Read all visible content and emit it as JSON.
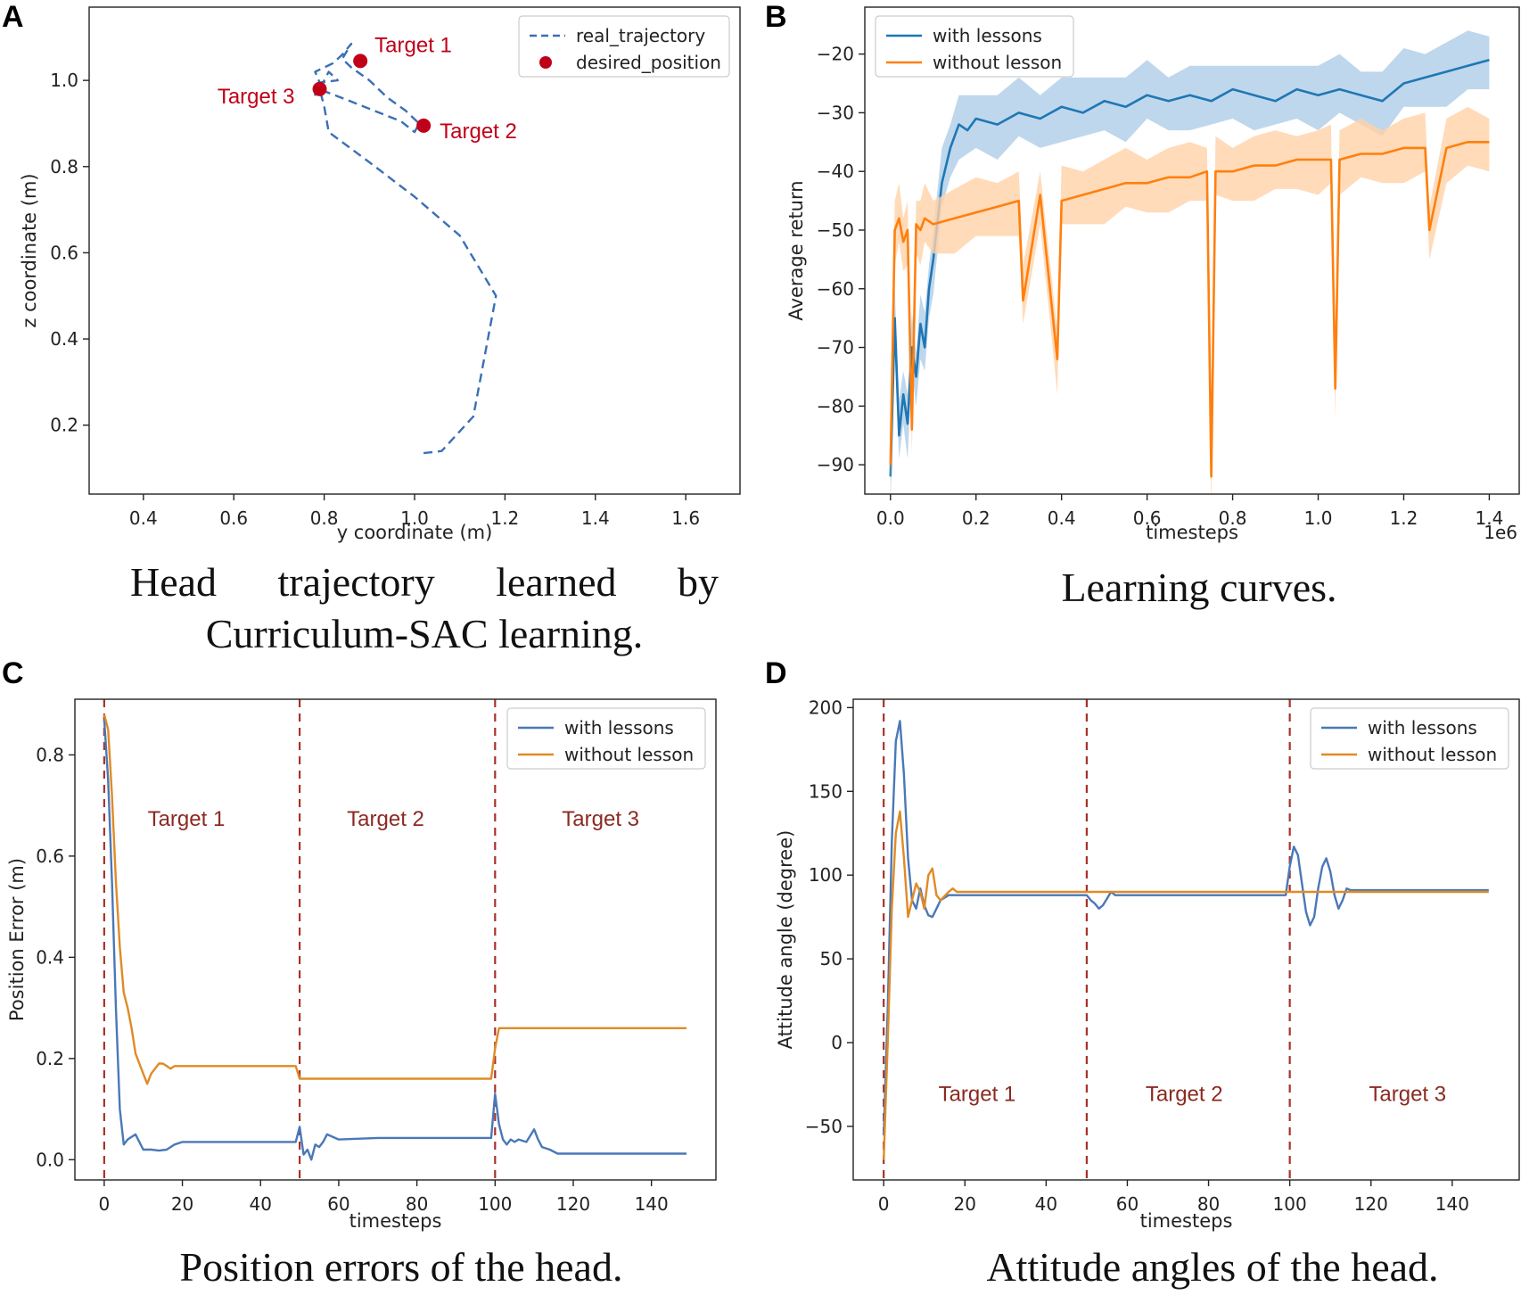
{
  "figure": {
    "captions": {
      "A": "Head trajectory learned by Curriculum-SAC learning.",
      "B": "Learning curves.",
      "C": "Position errors of the head.",
      "D": "Attitude angles of the head."
    }
  },
  "chart_data": [
    {
      "id": "A",
      "panel_label": "A",
      "type": "line",
      "xlabel": "y coordinate (m)",
      "ylabel": "z coordinate (m)",
      "xlim": [
        0.28,
        1.72
      ],
      "ylim": [
        0.04,
        1.17
      ],
      "xticks": [
        "0.4",
        "0.6",
        "0.8",
        "1.0",
        "1.2",
        "1.4",
        "1.6"
      ],
      "yticks": [
        "0.2",
        "0.4",
        "0.6",
        "0.8",
        "1.0"
      ],
      "legend": [
        "real_trajectory",
        "desired_position"
      ],
      "legend_position": "top-right",
      "series": [
        {
          "name": "real_trajectory",
          "color": "#3a6fb5",
          "style": "dashed",
          "x": [
            1.02,
            1.06,
            1.13,
            1.18,
            1.1,
            1.0,
            0.9,
            0.81,
            0.8,
            0.79,
            0.81,
            0.83,
            0.79,
            0.78,
            0.82,
            0.84,
            0.86,
            0.84,
            0.86,
            0.9,
            0.94,
            0.98,
            1.01,
            1.0,
            0.97,
            0.91,
            0.85,
            0.8,
            0.78,
            0.8,
            0.77
          ],
          "y": [
            0.135,
            0.14,
            0.22,
            0.5,
            0.64,
            0.73,
            0.81,
            0.88,
            0.94,
            0.98,
            1.02,
            1.0,
            0.995,
            1.02,
            1.04,
            1.06,
            1.085,
            1.05,
            1.03,
            1.0,
            0.96,
            0.93,
            0.9,
            0.88,
            0.905,
            0.93,
            0.955,
            0.975,
            0.97,
            0.98,
            0.96
          ]
        }
      ],
      "points": {
        "name": "desired_position",
        "color": "#c00018",
        "x": [
          0.88,
          1.02,
          0.79
        ],
        "y": [
          1.045,
          0.895,
          0.98
        ],
        "labels": [
          "Target 1",
          "Target 2",
          "Target 3"
        ]
      }
    },
    {
      "id": "B",
      "panel_label": "B",
      "type": "line",
      "xlabel": "timesteps",
      "ylabel": "Average return",
      "x_offset_label": "1e6",
      "xlim": [
        -0.06,
        1.47
      ],
      "ylim": [
        -95,
        -12
      ],
      "xticks": [
        "0.0",
        "0.2",
        "0.4",
        "0.6",
        "0.8",
        "1.0",
        "1.2",
        "1.4"
      ],
      "yticks": [
        "−20",
        "−30",
        "−40",
        "−50",
        "−60",
        "−70",
        "−80",
        "−90"
      ],
      "legend": [
        "with lessons",
        "without lesson"
      ],
      "legend_position": "top-left",
      "series": [
        {
          "name": "with lessons",
          "color": "#1f77b4",
          "band": "#aecde8",
          "x": [
            0.0,
            0.01,
            0.02,
            0.03,
            0.04,
            0.05,
            0.06,
            0.07,
            0.08,
            0.09,
            0.1,
            0.12,
            0.14,
            0.16,
            0.18,
            0.2,
            0.25,
            0.3,
            0.35,
            0.4,
            0.45,
            0.5,
            0.55,
            0.6,
            0.65,
            0.7,
            0.75,
            0.8,
            0.85,
            0.9,
            0.95,
            1.0,
            1.05,
            1.1,
            1.15,
            1.2,
            1.25,
            1.3,
            1.35,
            1.4
          ],
          "y": [
            -92,
            -65,
            -85,
            -78,
            -83,
            -70,
            -75,
            -66,
            -70,
            -60,
            -55,
            -42,
            -36,
            -32,
            -33,
            -31,
            -32,
            -30,
            -31,
            -29,
            -30,
            -28,
            -29,
            -27,
            -28,
            -27,
            -28,
            -26,
            -27,
            -28,
            -26,
            -27,
            -26,
            -27,
            -28,
            -25,
            -24,
            -23,
            -22,
            -21
          ]
        },
        {
          "name": "without lesson",
          "color": "#ff7f0e",
          "band": "#ffd2a8",
          "x": [
            0.0,
            0.01,
            0.02,
            0.03,
            0.04,
            0.05,
            0.06,
            0.07,
            0.08,
            0.1,
            0.15,
            0.2,
            0.25,
            0.3,
            0.31,
            0.35,
            0.39,
            0.4,
            0.45,
            0.5,
            0.55,
            0.6,
            0.65,
            0.7,
            0.74,
            0.75,
            0.76,
            0.8,
            0.85,
            0.9,
            0.95,
            1.0,
            1.03,
            1.04,
            1.05,
            1.1,
            1.15,
            1.2,
            1.25,
            1.26,
            1.3,
            1.35,
            1.4
          ],
          "y": [
            -90,
            -50,
            -48,
            -52,
            -50,
            -84,
            -49,
            -50,
            -48,
            -49,
            -48,
            -47,
            -46,
            -45,
            -62,
            -44,
            -72,
            -45,
            -44,
            -43,
            -42,
            -42,
            -41,
            -41,
            -40,
            -92,
            -40,
            -40,
            -39,
            -39,
            -38,
            -38,
            -38,
            -77,
            -38,
            -37,
            -37,
            -36,
            -36,
            -50,
            -36,
            -35,
            -35
          ]
        }
      ]
    },
    {
      "id": "C",
      "panel_label": "C",
      "type": "line",
      "xlabel": "timesteps",
      "ylabel": "Position Error (m)",
      "xlim": [
        -7.5,
        156.5
      ],
      "ylim": [
        -0.04,
        0.91
      ],
      "xticks": [
        "0",
        "20",
        "40",
        "60",
        "80",
        "100",
        "120",
        "140"
      ],
      "yticks": [
        "0.0",
        "0.2",
        "0.4",
        "0.6",
        "0.8"
      ],
      "legend": [
        "with lessons",
        "without lesson"
      ],
      "legend_position": "top-right",
      "vlines": [
        0,
        50,
        100
      ],
      "region_labels": [
        "Target 1",
        "Target 2",
        "Target 3"
      ],
      "region_label_x": [
        21,
        72,
        127
      ],
      "region_label_y": 0.66,
      "series": [
        {
          "name": "with lessons",
          "color": "#4a78b8",
          "x": [
            0,
            1,
            2,
            3,
            4,
            5,
            6,
            8,
            10,
            12,
            14,
            16,
            18,
            20,
            30,
            40,
            49,
            50,
            51,
            52,
            53,
            54,
            55,
            56,
            57,
            60,
            70,
            80,
            90,
            99,
            100,
            101,
            102,
            103,
            104,
            105,
            106,
            108,
            110,
            111,
            112,
            114,
            116,
            120,
            130,
            140,
            149
          ],
          "y": [
            0.87,
            0.75,
            0.55,
            0.3,
            0.1,
            0.03,
            0.04,
            0.05,
            0.02,
            0.02,
            0.018,
            0.02,
            0.03,
            0.035,
            0.035,
            0.035,
            0.035,
            0.065,
            0.01,
            0.02,
            0.0,
            0.03,
            0.025,
            0.035,
            0.05,
            0.04,
            0.043,
            0.043,
            0.043,
            0.043,
            0.13,
            0.07,
            0.04,
            0.03,
            0.04,
            0.035,
            0.04,
            0.035,
            0.06,
            0.04,
            0.025,
            0.02,
            0.012,
            0.012,
            0.012,
            0.012,
            0.012
          ]
        },
        {
          "name": "without lesson",
          "color": "#e08a26",
          "x": [
            0,
            1,
            2,
            3,
            4,
            5,
            6,
            7,
            8,
            9,
            10,
            11,
            12,
            13,
            14,
            15,
            16,
            17,
            18,
            19,
            20,
            30,
            40,
            49,
            50,
            51,
            60,
            70,
            80,
            90,
            99,
            100,
            101,
            110,
            120,
            130,
            140,
            149
          ],
          "y": [
            0.88,
            0.85,
            0.72,
            0.55,
            0.42,
            0.33,
            0.3,
            0.26,
            0.21,
            0.19,
            0.17,
            0.15,
            0.17,
            0.18,
            0.19,
            0.19,
            0.185,
            0.18,
            0.185,
            0.185,
            0.185,
            0.185,
            0.185,
            0.185,
            0.16,
            0.16,
            0.16,
            0.16,
            0.16,
            0.16,
            0.16,
            0.22,
            0.26,
            0.26,
            0.26,
            0.26,
            0.26,
            0.26
          ]
        }
      ]
    },
    {
      "id": "D",
      "panel_label": "D",
      "type": "line",
      "xlabel": "timesteps",
      "ylabel": "Attitude angle (degree)",
      "xlim": [
        -7.5,
        156.5
      ],
      "ylim": [
        -82,
        205
      ],
      "xticks": [
        "0",
        "20",
        "40",
        "60",
        "80",
        "100",
        "120",
        "140"
      ],
      "yticks": [
        "200",
        "150",
        "100",
        "50",
        "0",
        "−50"
      ],
      "legend": [
        "with lessons",
        "without lesson"
      ],
      "legend_position": "top-right",
      "vlines": [
        0,
        50,
        100
      ],
      "region_labels": [
        "Target 1",
        "Target 2",
        "Target 3"
      ],
      "region_label_x": [
        23,
        74,
        129
      ],
      "region_label_y": -35,
      "series": [
        {
          "name": "with lessons",
          "color": "#4a78b8",
          "x": [
            0,
            1,
            2,
            3,
            4,
            5,
            6,
            7,
            8,
            9,
            10,
            11,
            12,
            13,
            14,
            16,
            20,
            30,
            40,
            50,
            51,
            52,
            53,
            54,
            55,
            56,
            57,
            60,
            70,
            80,
            90,
            99,
            100,
            101,
            102,
            103,
            104,
            105,
            106,
            107,
            108,
            109,
            110,
            111,
            112,
            113,
            114,
            115,
            120,
            130,
            140,
            149
          ],
          "y": [
            -55,
            20,
            120,
            180,
            192,
            160,
            110,
            85,
            80,
            92,
            82,
            76,
            75,
            80,
            85,
            88,
            88,
            88,
            88,
            88,
            85,
            83,
            80,
            82,
            86,
            90,
            88,
            88,
            88,
            88,
            88,
            88,
            105,
            117,
            112,
            95,
            78,
            70,
            75,
            92,
            105,
            110,
            102,
            88,
            80,
            85,
            92,
            91,
            91,
            91,
            91,
            91
          ]
        },
        {
          "name": "without lesson",
          "color": "#e08a26",
          "x": [
            0,
            1,
            2,
            3,
            4,
            5,
            6,
            7,
            8,
            9,
            10,
            11,
            12,
            13,
            14,
            16,
            17,
            18,
            20,
            30,
            40,
            50,
            60,
            70,
            80,
            90,
            100,
            110,
            120,
            130,
            140,
            149
          ],
          "y": [
            -70,
            0,
            80,
            125,
            138,
            110,
            75,
            85,
            95,
            90,
            80,
            100,
            104,
            88,
            85,
            90,
            92,
            90,
            90,
            90,
            90,
            90,
            90,
            90,
            90,
            90,
            90,
            90,
            90,
            90,
            90,
            90
          ]
        }
      ]
    }
  ]
}
